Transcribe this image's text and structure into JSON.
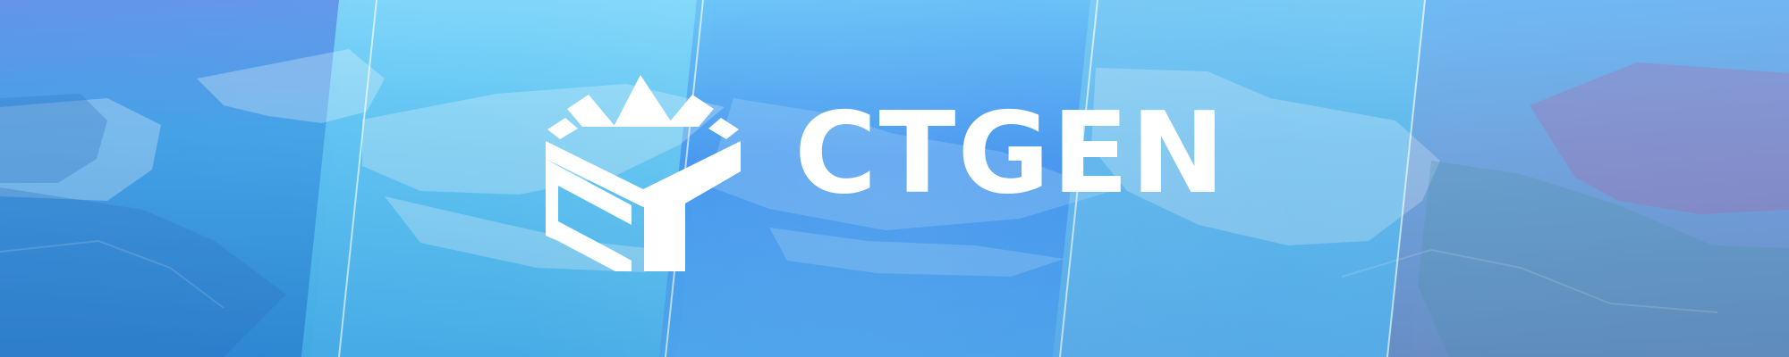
{
  "brand": {
    "name": "CTGEN",
    "logo_icon": "ctgen-logo-icon"
  },
  "colors": {
    "background_start": "#4f7ff0",
    "background_mid": "#3f8cf3",
    "background_end": "#6f8bd9",
    "logo": "#ffffff"
  }
}
